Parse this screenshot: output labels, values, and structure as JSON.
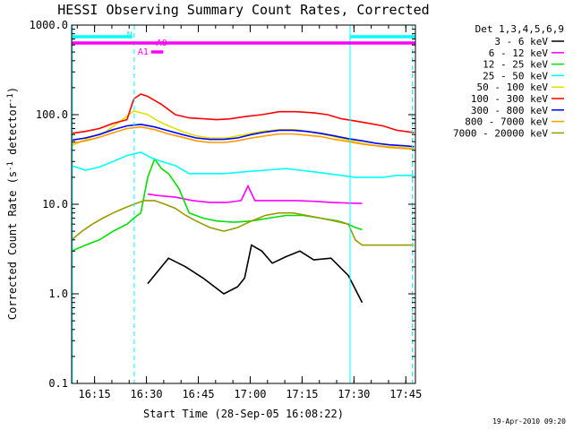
{
  "chart_data": {
    "type": "line",
    "title": "HESSI Observing Summary Count Rates, Corrected",
    "xlabel": "Start Time (28-Sep-05 16:08:22)",
    "ylabel_parts": {
      "main": "Corrected Count Rate (s",
      "sup1": "-1",
      "mid": " detector",
      "sup2": "-1",
      "end": ")"
    },
    "footer": "19-Apr-2010 09:20",
    "x_unit": "minutes after 16:08:22 UT",
    "x_range": [
      0,
      99.4
    ],
    "ylim": [
      0.1,
      1000
    ],
    "y_scale": "log",
    "x_ticks": [
      {
        "value": 6.63,
        "label": "16:15"
      },
      {
        "value": 21.63,
        "label": "16:30"
      },
      {
        "value": 36.63,
        "label": "16:45"
      },
      {
        "value": 51.63,
        "label": "17:00"
      },
      {
        "value": 66.63,
        "label": "17:15"
      },
      {
        "value": 81.63,
        "label": "17:30"
      },
      {
        "value": 96.63,
        "label": "17:45"
      }
    ],
    "y_ticks": [
      {
        "value": 0.1,
        "label": "0.1"
      },
      {
        "value": 1,
        "label": "1.0"
      },
      {
        "value": 10,
        "label": "10.0"
      },
      {
        "value": 100,
        "label": "100.0"
      },
      {
        "value": 1000,
        "label": "1000.0"
      }
    ],
    "legend": {
      "header": "Det 1,3,4,5,6,9",
      "placement": "right, outside plot",
      "entries": [
        {
          "label": "3 - 6 keV",
          "color": "#000000"
        },
        {
          "label": "6 - 12 keV",
          "color": "#ff00ff"
        },
        {
          "label": "12 - 25 keV",
          "color": "#00e000"
        },
        {
          "label": "25 - 50 keV",
          "color": "#00ffff"
        },
        {
          "label": "50 - 100 keV",
          "color": "#e0e000"
        },
        {
          "label": "100 - 300 keV",
          "color": "#ff0000"
        },
        {
          "label": "300 - 800 keV",
          "color": "#0000ff"
        },
        {
          "label": "800 - 7000 keV",
          "color": "#ff9900"
        },
        {
          "label": "7000 - 20000 keV",
          "color": "#999900"
        }
      ]
    },
    "series": [
      {
        "name": "3 - 6 keV",
        "color": "#000000",
        "x": [
          6,
          6,
          22,
          28,
          33,
          38,
          44,
          48,
          50,
          52,
          55,
          58,
          62,
          66,
          70,
          75,
          80,
          84
        ],
        "y": [
          null,
          null,
          1.3,
          2.5,
          2.0,
          1.5,
          1.0,
          1.2,
          1.5,
          3.5,
          3.0,
          2.2,
          2.6,
          3.0,
          2.4,
          2.5,
          1.6,
          0.8
        ]
      },
      {
        "name": "6 - 12 keV",
        "color": "#ff00ff",
        "x": [
          22,
          25,
          30,
          35,
          40,
          45,
          49,
          51,
          53,
          56,
          60,
          65,
          70,
          75,
          80,
          84
        ],
        "y": [
          13,
          12.5,
          12,
          11,
          10.5,
          10.5,
          11,
          16,
          11,
          11,
          11,
          11,
          10.8,
          10.5,
          10.3,
          10.2
        ]
      },
      {
        "name": "12 - 25 keV",
        "color": "#00e000",
        "x": [
          0,
          4,
          8,
          12,
          16,
          18,
          20,
          22,
          24,
          26,
          28,
          31,
          34,
          38,
          42,
          47,
          52,
          57,
          62,
          67,
          72,
          77,
          80,
          82,
          84
        ],
        "y": [
          3,
          3.5,
          4,
          5,
          6,
          7,
          8,
          20,
          32,
          25,
          22,
          15,
          8,
          7,
          6.5,
          6.3,
          6.5,
          7,
          7.5,
          7.5,
          7,
          6.5,
          6,
          5.5,
          5.2
        ]
      },
      {
        "name": "25 - 50 keV",
        "color": "#00ffff",
        "x": [
          0,
          4,
          8,
          12,
          16,
          20,
          23,
          26,
          30,
          34,
          38,
          44,
          50,
          56,
          62,
          66,
          70,
          74,
          78,
          82,
          86,
          90,
          94,
          99
        ],
        "y": [
          27,
          24,
          26,
          30,
          35,
          38,
          33,
          30,
          27,
          22,
          22,
          22,
          23,
          24,
          25,
          24,
          23,
          22,
          21,
          20,
          20,
          20,
          21,
          21
        ]
      },
      {
        "name": "50 - 100 keV",
        "color": "#e0e000",
        "x": [
          0,
          5,
          10,
          15,
          18,
          20,
          22,
          25,
          28,
          32,
          36,
          40,
          45,
          50,
          55,
          60,
          65,
          70,
          75,
          80,
          84,
          88,
          92,
          96,
          99
        ],
        "y": [
          45,
          55,
          65,
          90,
          110,
          105,
          100,
          85,
          75,
          65,
          58,
          55,
          55,
          60,
          65,
          68,
          68,
          63,
          58,
          52,
          48,
          45,
          44,
          43,
          42
        ]
      },
      {
        "name": "100 - 300 keV",
        "color": "#ff0000",
        "x": [
          0,
          4,
          8,
          12,
          16,
          18,
          20,
          22,
          26,
          30,
          34,
          38,
          42,
          46,
          50,
          55,
          60,
          65,
          70,
          74,
          78,
          82,
          86,
          90,
          94,
          99
        ],
        "y": [
          62,
          65,
          70,
          80,
          88,
          150,
          170,
          160,
          130,
          100,
          92,
          90,
          88,
          90,
          95,
          100,
          108,
          108,
          105,
          100,
          90,
          85,
          80,
          75,
          67,
          63
        ]
      },
      {
        "name": "300 - 800 keV",
        "color": "#0000ff",
        "x": [
          0,
          4,
          8,
          12,
          16,
          20,
          24,
          28,
          32,
          36,
          40,
          44,
          48,
          52,
          56,
          60,
          64,
          68,
          72,
          76,
          80,
          84,
          88,
          92,
          96,
          99
        ],
        "y": [
          52,
          55,
          60,
          68,
          75,
          78,
          73,
          66,
          60,
          55,
          53,
          53,
          55,
          60,
          64,
          67,
          67,
          65,
          62,
          58,
          54,
          51,
          48,
          46,
          45,
          44
        ]
      },
      {
        "name": "800 - 7000 keV",
        "color": "#ff9900",
        "x": [
          0,
          4,
          8,
          12,
          16,
          20,
          24,
          28,
          32,
          36,
          40,
          44,
          48,
          52,
          56,
          60,
          64,
          68,
          72,
          76,
          80,
          84,
          88,
          92,
          96,
          99
        ],
        "y": [
          48,
          51,
          56,
          63,
          70,
          73,
          68,
          61,
          56,
          51,
          49,
          49,
          51,
          55,
          58,
          61,
          61,
          59,
          57,
          53,
          50,
          47,
          45,
          43,
          42,
          41
        ]
      },
      {
        "name": "7000 - 20000 keV",
        "color": "#999900",
        "x": [
          0,
          3,
          6,
          9,
          12,
          15,
          18,
          21,
          24,
          27,
          30,
          33,
          36,
          40,
          44,
          48,
          52,
          56,
          60,
          64,
          68,
          72,
          76,
          80,
          82,
          84,
          88,
          92,
          96,
          99
        ],
        "y": [
          4,
          5,
          6,
          7,
          8,
          9,
          10,
          11,
          11,
          10,
          9,
          7.5,
          6.5,
          5.5,
          5,
          5.5,
          6.5,
          7.5,
          8,
          8,
          7.5,
          7,
          6.5,
          6,
          4,
          3.5,
          3.5,
          3.5,
          3.5,
          3.5
        ]
      }
    ],
    "mode_bars": [
      {
        "label": "N",
        "color": "#00ffff",
        "segments": [
          [
            0,
            17.5
          ],
          [
            80.5,
            99.4
          ]
        ]
      },
      {
        "label": "A0",
        "color": "#ff00ff",
        "segments": [
          [
            0,
            99.4
          ]
        ]
      },
      {
        "label": "A1",
        "color": "#ff00ff",
        "segments": [
          [
            23,
            26.5
          ]
        ]
      }
    ],
    "markers": {
      "solid_lines": [
        0.2,
        80.5
      ],
      "dashed_lines": [
        18.1,
        98.5
      ],
      "line_color": "#00ffff"
    }
  }
}
